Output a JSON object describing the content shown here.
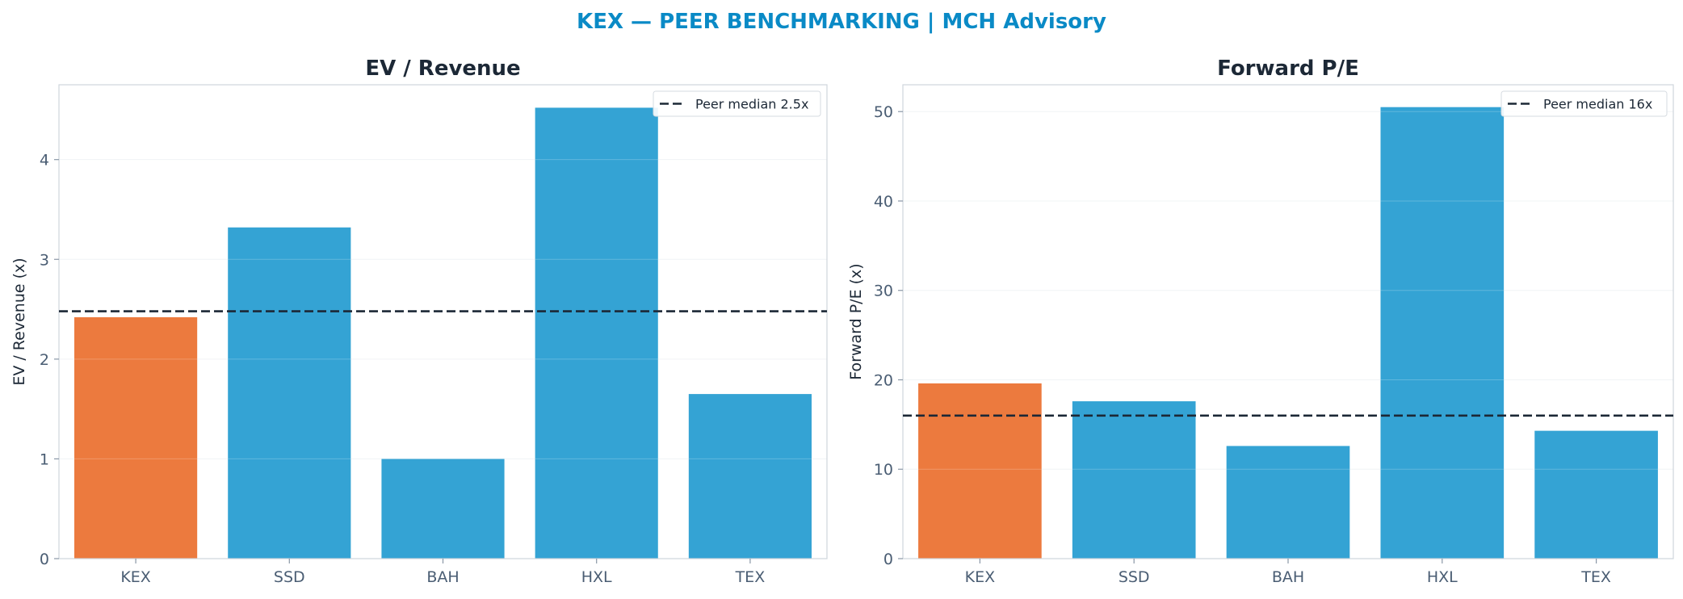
{
  "title": "KEX — PEER BENCHMARKING | MCH Advisory",
  "colors": {
    "title": "#0a8ac6",
    "highlight_bar": "#ec7a3e",
    "peer_bar": "#34a3d4",
    "median_line": "#1c2836",
    "axis_text": "#4a5d73",
    "grid": "#eef1f4"
  },
  "chart_data": [
    {
      "type": "bar",
      "title": "EV / Revenue",
      "xlabel": "",
      "ylabel": "EV / Revenue (x)",
      "categories": [
        "KEX",
        "SSD",
        "BAH",
        "HXL",
        "TEX"
      ],
      "values": [
        2.42,
        3.32,
        1.0,
        4.52,
        1.65
      ],
      "highlight": "KEX",
      "ylim": [
        0,
        4.75
      ],
      "yticks": [
        0,
        1,
        2,
        3,
        4
      ],
      "reference_line": {
        "label": "Peer median 2.5x",
        "value": 2.48,
        "style": "dashed"
      },
      "grid": true,
      "legend": "top-right"
    },
    {
      "type": "bar",
      "title": "Forward P/E",
      "xlabel": "",
      "ylabel": "Forward P/E (x)",
      "categories": [
        "KEX",
        "SSD",
        "BAH",
        "HXL",
        "TEX"
      ],
      "values": [
        19.6,
        17.6,
        12.6,
        50.5,
        14.3
      ],
      "highlight": "KEX",
      "ylim": [
        0,
        53
      ],
      "yticks": [
        0,
        10,
        20,
        30,
        40,
        50
      ],
      "reference_line": {
        "label": "Peer median 16x",
        "value": 16.0,
        "style": "dashed"
      },
      "grid": true,
      "legend": "top-right"
    }
  ]
}
